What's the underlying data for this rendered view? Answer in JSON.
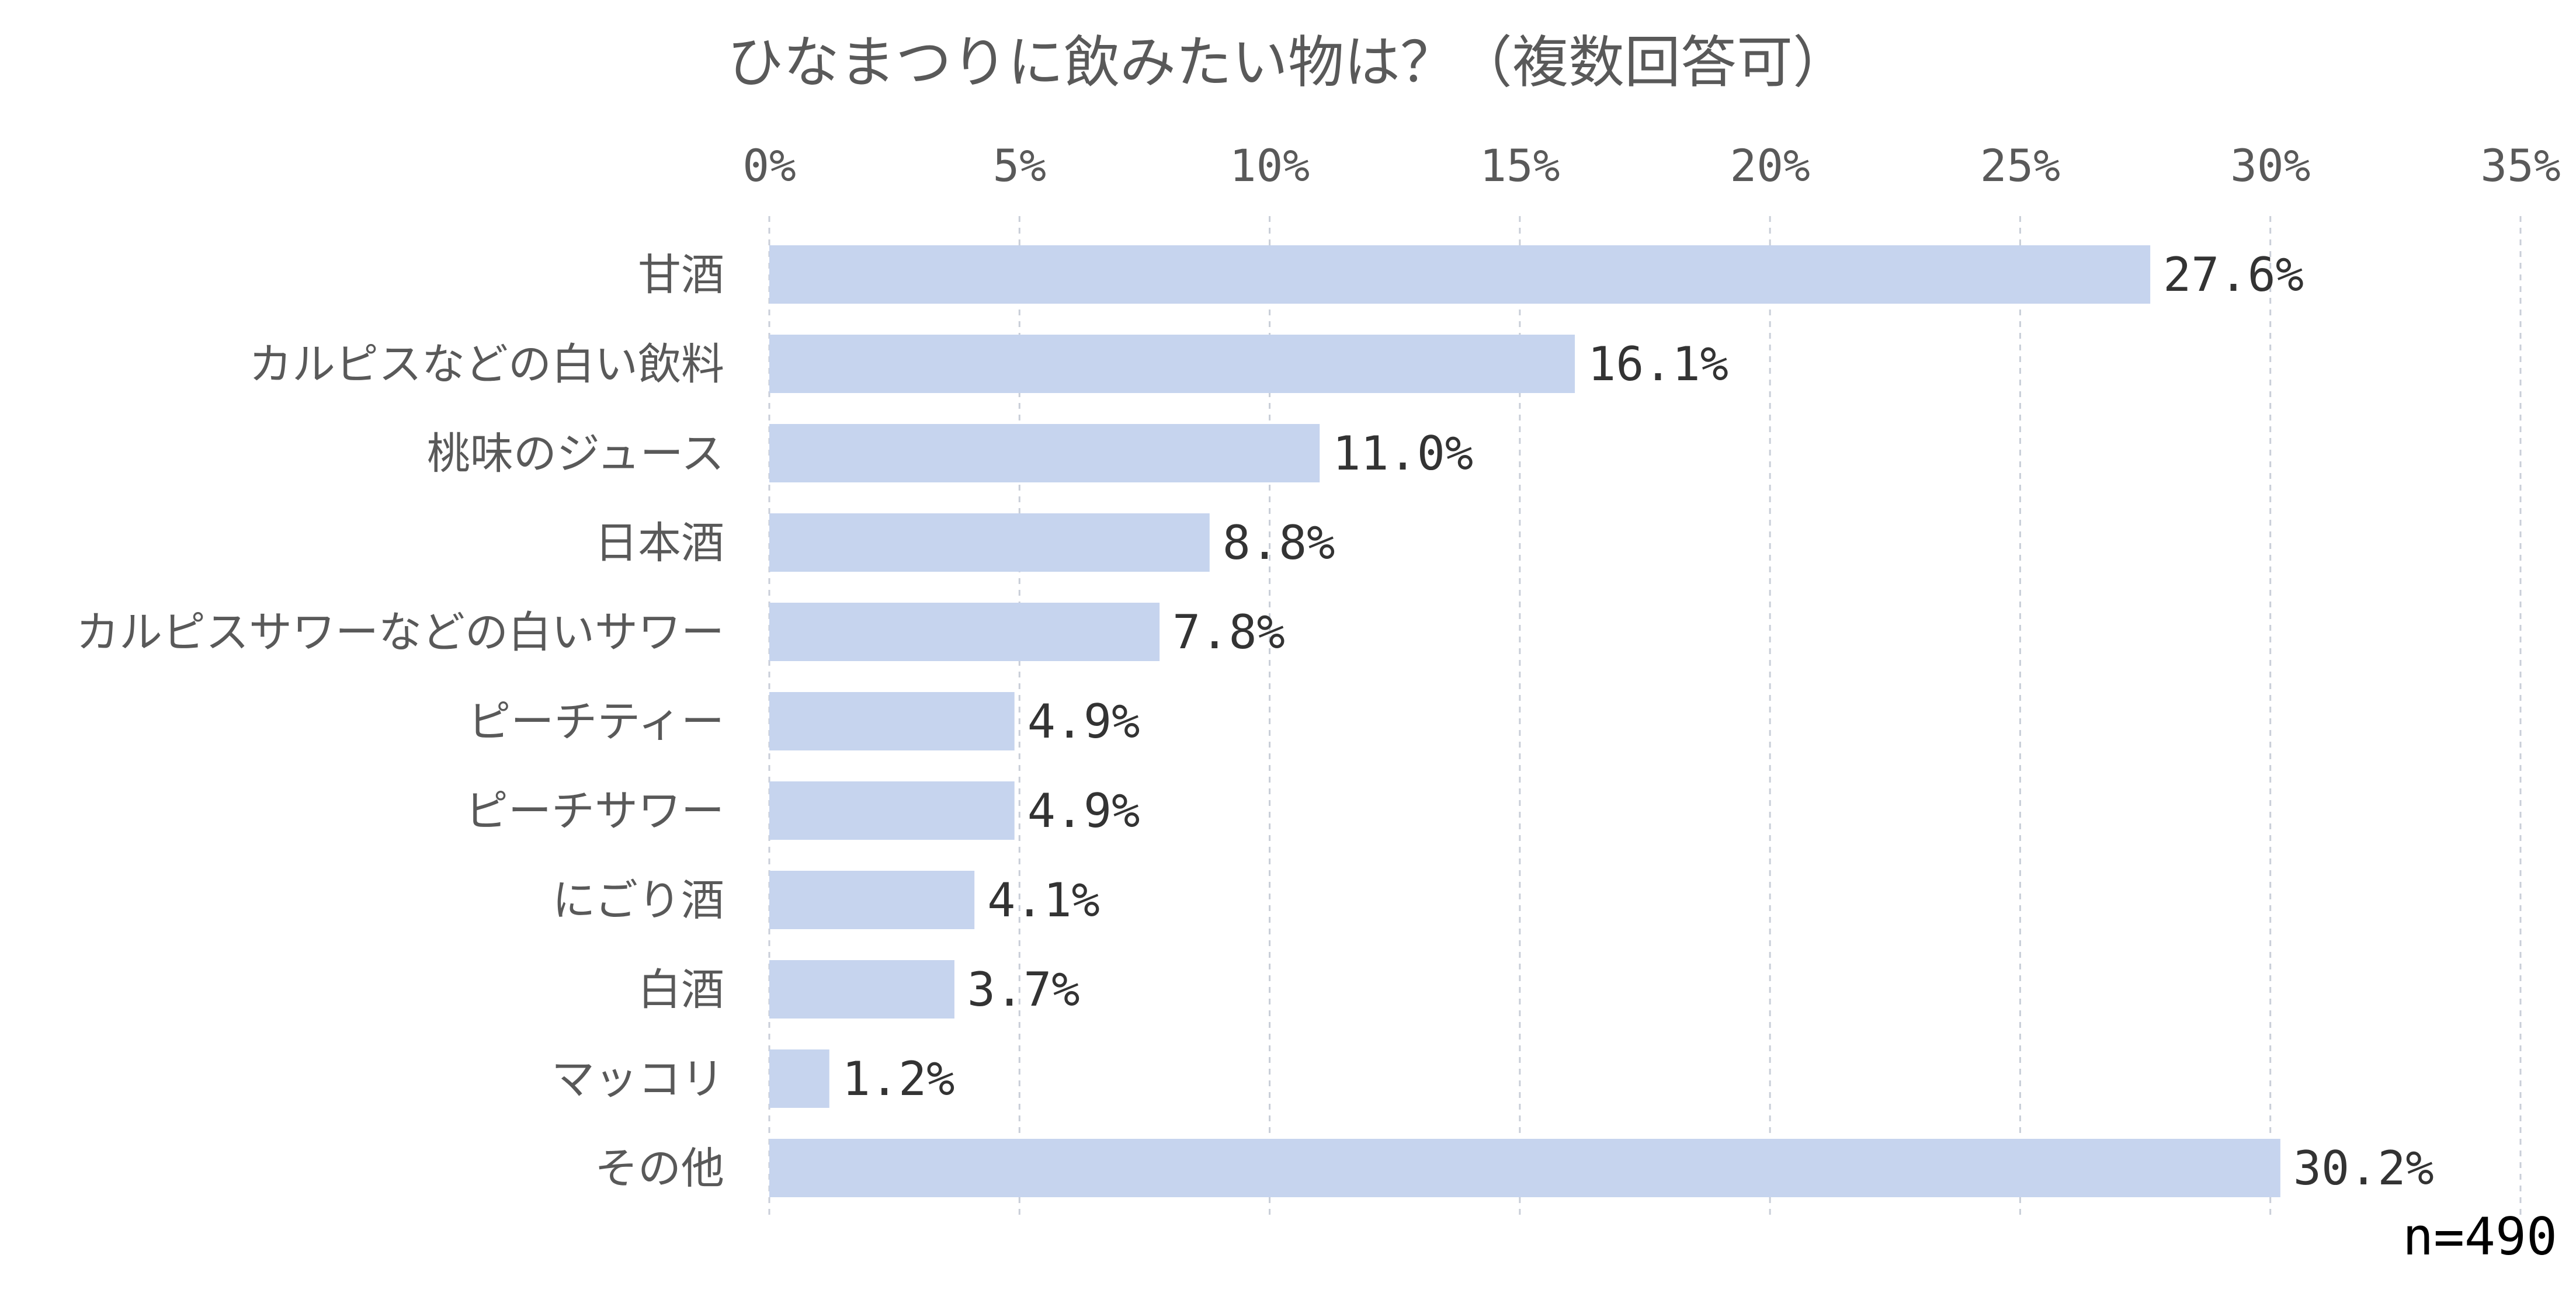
{
  "chart_data": {
    "type": "bar",
    "orientation": "horizontal",
    "title": "ひなまつりに飲みたい物は？（複数回答可）",
    "categories": [
      "甘酒",
      "カルピスなどの白い飲料",
      "桃味のジュース",
      "日本酒",
      "カルピスサワーなどの白いサワー",
      "ピーチティー",
      "ピーチサワー",
      "にごり酒",
      "白酒",
      "マッコリ",
      "その他"
    ],
    "values": [
      27.6,
      16.1,
      11.0,
      8.8,
      7.8,
      4.9,
      4.9,
      4.1,
      3.7,
      1.2,
      30.2
    ],
    "value_labels": [
      "27.6%",
      "16.1%",
      "11.0%",
      "8.8%",
      "7.8%",
      "4.9%",
      "4.9%",
      "4.1%",
      "3.7%",
      "1.2%",
      "30.2%"
    ],
    "xlim": [
      0,
      35
    ],
    "x_ticks": [
      0,
      5,
      10,
      15,
      20,
      25,
      30,
      35
    ],
    "x_tick_labels": [
      "0%",
      "5%",
      "10%",
      "15%",
      "20%",
      "25%",
      "30%",
      "35%"
    ],
    "x_axis_position": "top",
    "grid": "vertical-dashed",
    "note": "n=490",
    "bar_color": "#c6d4ee"
  }
}
